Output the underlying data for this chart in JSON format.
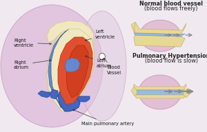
{
  "bg_color": "#f0eaf0",
  "lung_color_l": "#ddb8d8",
  "lung_color_r": "#e0c8e0",
  "lung_edge": "#c898c0",
  "heart_cream": "#f0e8c0",
  "heart_cream_ec": "#d8c888",
  "heart_red": "#e05030",
  "heart_red_dark": "#c03818",
  "heart_blue_l": "#6688cc",
  "heart_blue_l_ec": "#4466aa",
  "artery_blue": "#4466bb",
  "artery_blue_ec": "#2244aa",
  "vessel_light_blue": "#99bbdd",
  "vessel_cream": "#e8d898",
  "vessel_cream_ec": "#c8b870",
  "pink_blob": "#e0b8d0",
  "pink_blob_ec": "#c898b8",
  "gray_arrow": "#888888",
  "text_dark": "#222222",
  "text_label": "#111111",
  "title1": "Normal blood vessel",
  "title1b": "(blood flows freely)",
  "title2": "Pulmonary Hypertension",
  "title2b": "(blood flow is slow)",
  "lbl_main_artery": "Main pulmonary artery",
  "lbl_blood_vessel": "Blood\nVessel",
  "lbl_right_atrium": "Right\natrium",
  "lbl_right_ventricle": "Right\nventricle",
  "lbl_left_atrium": "Left\natrium",
  "lbl_left_ventricle": "Left\nventricle"
}
